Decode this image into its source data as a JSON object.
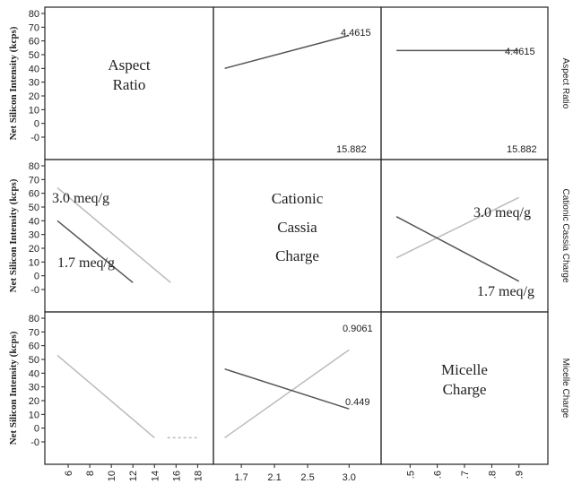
{
  "chart_data": {
    "type": "line",
    "title": "",
    "y_axis_label": "Net Silicon Intensity (kcps)",
    "y_ticks": [
      "80",
      "70",
      "60",
      "50",
      "40",
      "30",
      "20",
      "10",
      "0",
      "-0"
    ],
    "ylim": [
      -10,
      80
    ],
    "factors": [
      "Aspect Ratio",
      "Cationic Cassia Charge",
      "Micelle Charge"
    ],
    "diagonal_labels": [
      [
        "Aspect",
        "Ratio"
      ],
      [
        "Cationic",
        "Cassia",
        "Charge"
      ],
      [
        "Micelle",
        "Charge"
      ]
    ],
    "x_ticks": [
      [
        "6",
        "8",
        "10",
        "12",
        "14",
        "16",
        "18"
      ],
      [
        "1.7",
        "2.1",
        "2.5",
        "3.0"
      ],
      [
        ".5",
        ".6",
        ".7",
        ".8",
        ".9"
      ]
    ],
    "panels": [
      {
        "name": "aspect-ratio-x-cassia-charge",
        "xlim": [
          1.45,
          3.3
        ],
        "annotations": [
          "4.4615",
          "15.882"
        ],
        "series": [
          {
            "x": [
              1.5,
              3.0
            ],
            "values": [
              40,
              64
            ]
          }
        ]
      },
      {
        "name": "aspect-ratio-x-micelle-charge",
        "xlim": [
          0.42,
          0.98
        ],
        "annotations": [
          "4.4615",
          "15.882"
        ],
        "series": [
          {
            "x": [
              0.45,
              0.9
            ],
            "values": [
              53,
              53
            ]
          }
        ]
      },
      {
        "name": "cassia-charge-x-aspect-ratio",
        "xlim": [
          4.5,
          18.8
        ],
        "annotations": [
          "3.0 meq/g",
          "1.7 meq/g"
        ],
        "series": [
          {
            "name": "3.0 meq/g",
            "x": [
              5,
              15.5
            ],
            "values": [
              64,
              -5
            ]
          },
          {
            "name": "1.7 meq/g",
            "x": [
              5,
              12
            ],
            "values": [
              40,
              -5
            ]
          }
        ]
      },
      {
        "name": "cassia-charge-x-micelle-charge",
        "xlim": [
          0.42,
          0.98
        ],
        "annotations": [
          "3.0 meq/g",
          "1.7 meq/g"
        ],
        "series": [
          {
            "name": "3.0 meq/g",
            "x": [
              0.45,
              0.9
            ],
            "values": [
              13,
              57
            ]
          },
          {
            "name": "1.7 meq/g",
            "x": [
              0.45,
              0.9
            ],
            "values": [
              43,
              -4
            ]
          }
        ]
      },
      {
        "name": "micelle-charge-x-aspect-ratio",
        "xlim": [
          4.5,
          18.8
        ],
        "annotations": [],
        "series": [
          {
            "x": [
              5,
              14
            ],
            "values": [
              53,
              -7
            ]
          }
        ]
      },
      {
        "name": "micelle-charge-x-cassia-charge",
        "xlim": [
          1.45,
          3.3
        ],
        "annotations": [
          "0.9061",
          "0.449"
        ],
        "series": [
          {
            "name": "0.9061",
            "x": [
              1.5,
              3.0
            ],
            "values": [
              -7,
              57
            ]
          },
          {
            "name": "0.449",
            "x": [
              1.5,
              3.0
            ],
            "values": [
              43,
              14
            ]
          }
        ]
      }
    ],
    "right_labels": [
      "Aspect Ratio",
      "Cationic Cassia Charge",
      "Micelle Charge"
    ],
    "grid": false,
    "colors": {
      "dark": "#555555",
      "light": "#bbbbbb",
      "frame": "#222222"
    }
  }
}
